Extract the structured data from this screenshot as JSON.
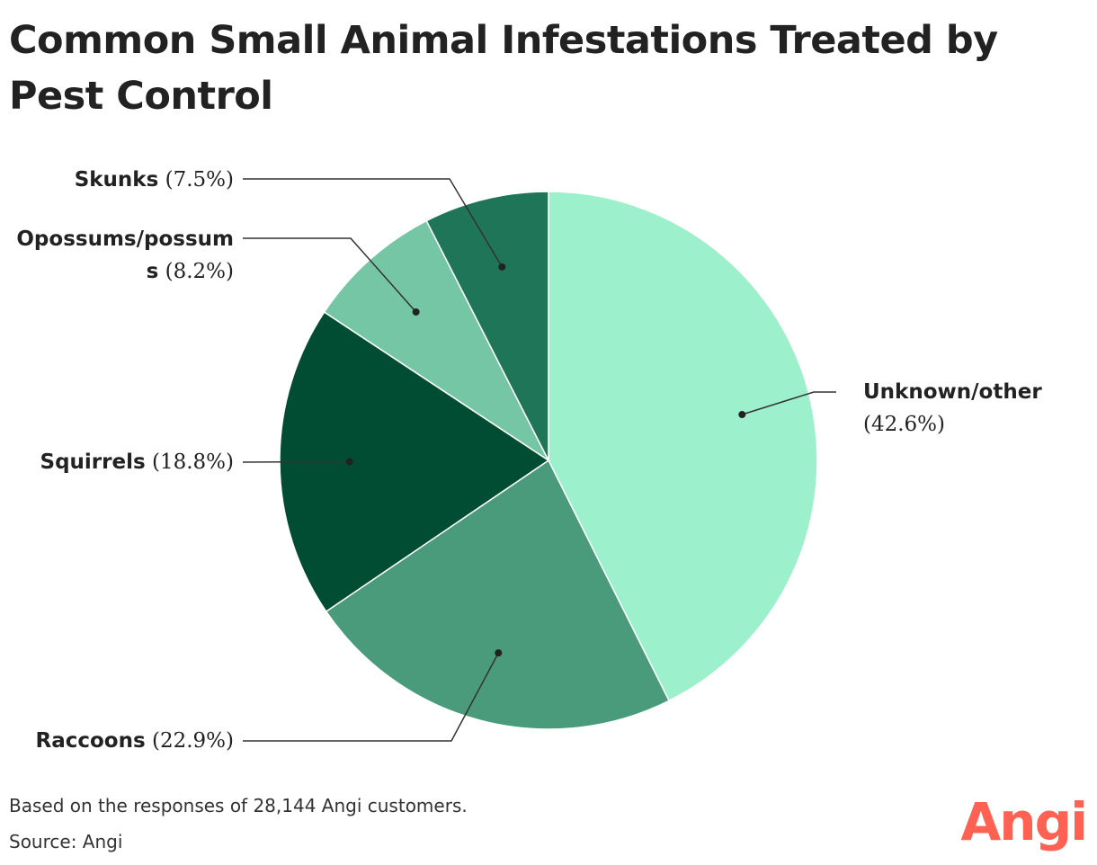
{
  "chart_data": {
    "type": "pie",
    "title": "Common Small Animal Infestations Treated by Pest Control",
    "slices": [
      {
        "label": "Unknown/other",
        "value": 42.6,
        "value_label": "(42.6%)",
        "color": "#9df0cc"
      },
      {
        "label": "Raccoons",
        "value": 22.9,
        "value_label": "(22.9%)",
        "color": "#4a9b7c"
      },
      {
        "label": "Squirrels",
        "value": 18.8,
        "value_label": "(18.8%)",
        "color": "#004d33"
      },
      {
        "label": "Opossums/possums",
        "value": 8.2,
        "value_label": "(8.2%)",
        "color": "#74c6a4"
      },
      {
        "label": "Skunks",
        "value": 7.5,
        "value_label": "(7.5%)",
        "color": "#1f7557"
      }
    ],
    "start_angle": "12 o'clock",
    "direction": "clockwise"
  },
  "footer": {
    "note": "Based on the responses of 28,144 Angi customers.",
    "source": "Source: Angi"
  },
  "brand": {
    "logo_text": "Angi",
    "logo_color": "#ff6153"
  }
}
